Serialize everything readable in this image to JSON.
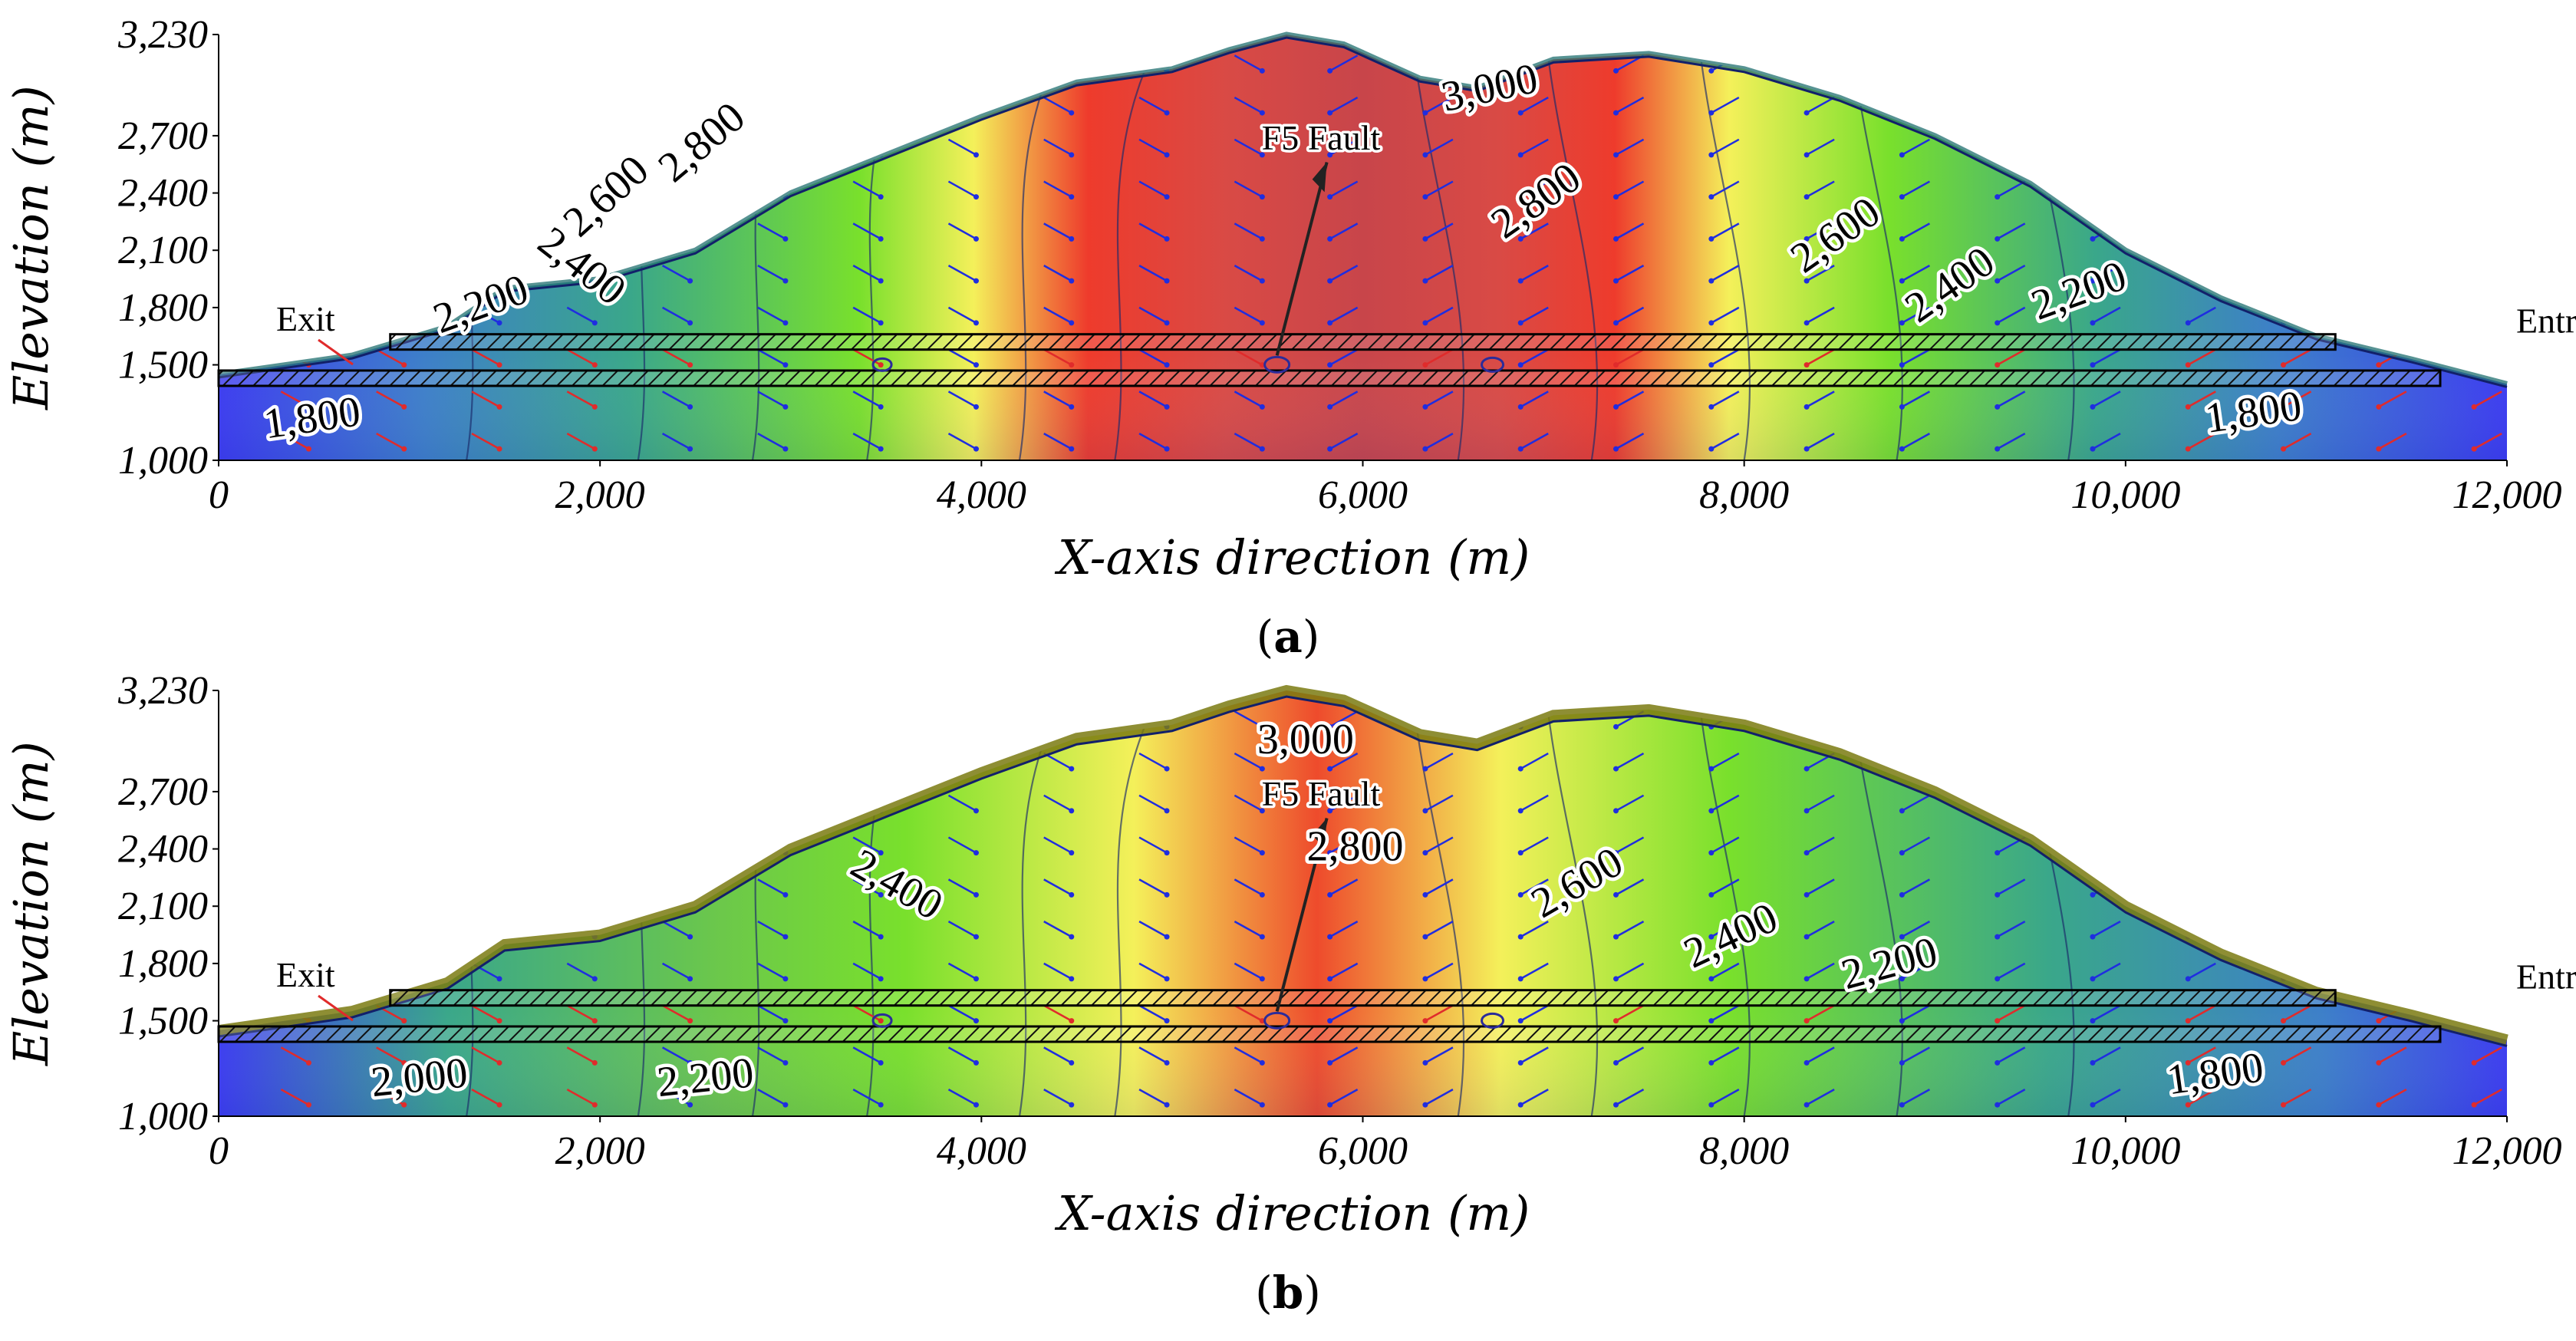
{
  "panels": [
    {
      "label_open": "(",
      "label_letter": "a",
      "label_close": ")",
      "peak_palette": "red",
      "labels": {
        "exit": "Exit",
        "entrance": "Entrance",
        "fault": "F5 Fault"
      },
      "contour_labels": [
        {
          "text": "1,800",
          "x": 500,
          "y": 1150,
          "angle": -8
        },
        {
          "text": "2,200",
          "x": 1400,
          "y": 1750,
          "angle": -20
        },
        {
          "text": "2,400",
          "x": 1860,
          "y": 1960,
          "angle": 38
        },
        {
          "text": "2,600",
          "x": 2080,
          "y": 2330,
          "angle": -42
        },
        {
          "text": "2,800",
          "x": 2580,
          "y": 2610,
          "angle": -40
        },
        {
          "text": "3,000",
          "x": 6680,
          "y": 2880,
          "angle": -12
        },
        {
          "text": "2,800",
          "x": 6950,
          "y": 2300,
          "angle": -35
        },
        {
          "text": "2,600",
          "x": 8520,
          "y": 2120,
          "angle": -35
        },
        {
          "text": "2,400",
          "x": 9120,
          "y": 1860,
          "angle": -35
        },
        {
          "text": "2,200",
          "x": 9780,
          "y": 1820,
          "angle": -20
        },
        {
          "text": "1,800",
          "x": 10680,
          "y": 1180,
          "angle": -8
        }
      ]
    },
    {
      "label_open": "(",
      "label_letter": "b",
      "label_close": ")",
      "peak_palette": "orange",
      "labels": {
        "exit": "Exit",
        "entrance": "Entrance",
        "fault": "F5 Fault"
      },
      "contour_labels": [
        {
          "text": "2,000",
          "x": 1060,
          "y": 1130,
          "angle": -6
        },
        {
          "text": "2,200",
          "x": 2560,
          "y": 1130,
          "angle": -6
        },
        {
          "text": "2,400",
          "x": 3520,
          "y": 2150,
          "angle": 30
        },
        {
          "text": "3,000",
          "x": 5700,
          "y": 2900,
          "angle": 0
        },
        {
          "text": "2,800",
          "x": 5960,
          "y": 2340,
          "angle": 0
        },
        {
          "text": "2,600",
          "x": 7160,
          "y": 2160,
          "angle": -30
        },
        {
          "text": "2,400",
          "x": 7960,
          "y": 1880,
          "angle": -25
        },
        {
          "text": "2,200",
          "x": 8780,
          "y": 1730,
          "angle": -15
        },
        {
          "text": "1,800",
          "x": 10480,
          "y": 1150,
          "angle": -8
        }
      ]
    }
  ],
  "chart_data": [
    {
      "type": "heatmap",
      "panel": "a",
      "xlabel": "X-axis direction (m)",
      "ylabel": "Elevation (m)",
      "xlim": [
        0,
        12000
      ],
      "ylim": [
        1000,
        3230
      ],
      "x_ticks": [
        "0",
        "2,000",
        "4,000",
        "6,000",
        "8,000",
        "10,000",
        "12,000"
      ],
      "y_ticks": [
        "1,000",
        "1,500",
        "1,800",
        "2,100",
        "2,400",
        "2,700",
        "3,230"
      ],
      "contour_values": [
        "1,800",
        "2,200",
        "2,400",
        "2,600",
        "2,800",
        "3,000",
        "2,800",
        "2,600",
        "2,400",
        "2,200",
        "1,800"
      ],
      "annotations": [
        "Exit",
        "Entrance",
        "F5 Fault"
      ],
      "surface_profile": [
        [
          0,
          1450
        ],
        [
          700,
          1550
        ],
        [
          1200,
          1700
        ],
        [
          1500,
          1900
        ],
        [
          2000,
          1950
        ],
        [
          2500,
          2100
        ],
        [
          3000,
          2400
        ],
        [
          3500,
          2600
        ],
        [
          4000,
          2800
        ],
        [
          4500,
          2980
        ],
        [
          5000,
          3050
        ],
        [
          5300,
          3150
        ],
        [
          5600,
          3230
        ],
        [
          5900,
          3180
        ],
        [
          6300,
          3000
        ],
        [
          6600,
          2950
        ],
        [
          7000,
          3100
        ],
        [
          7500,
          3130
        ],
        [
          8000,
          3050
        ],
        [
          8500,
          2900
        ],
        [
          9000,
          2700
        ],
        [
          9500,
          2450
        ],
        [
          10000,
          2100
        ],
        [
          10500,
          1850
        ],
        [
          11000,
          1650
        ],
        [
          11500,
          1530
        ],
        [
          12000,
          1400
        ]
      ],
      "tunnel_upper_elevation": 1620,
      "tunnel_lower_elevation": 1430,
      "fault_x": 5550
    },
    {
      "type": "heatmap",
      "panel": "b",
      "xlabel": "X-axis direction (m)",
      "ylabel": "Elevation (m)",
      "xlim": [
        0,
        12000
      ],
      "ylim": [
        1000,
        3230
      ],
      "x_ticks": [
        "0",
        "2,000",
        "4,000",
        "6,000",
        "8,000",
        "10,000",
        "12,000"
      ],
      "y_ticks": [
        "1,000",
        "1,500",
        "1,800",
        "2,100",
        "2,400",
        "2,700",
        "3,230"
      ],
      "contour_values": [
        "2,000",
        "2,200",
        "2,400",
        "3,000",
        "2,800",
        "2,600",
        "2,400",
        "2,200",
        "1,800"
      ],
      "annotations": [
        "Exit",
        "Entrance",
        "F5 Fault"
      ],
      "surface_profile": [
        [
          0,
          1450
        ],
        [
          700,
          1550
        ],
        [
          1200,
          1700
        ],
        [
          1500,
          1900
        ],
        [
          2000,
          1950
        ],
        [
          2500,
          2100
        ],
        [
          3000,
          2400
        ],
        [
          3500,
          2600
        ],
        [
          4000,
          2800
        ],
        [
          4500,
          2980
        ],
        [
          5000,
          3050
        ],
        [
          5300,
          3150
        ],
        [
          5600,
          3230
        ],
        [
          5900,
          3180
        ],
        [
          6300,
          3000
        ],
        [
          6600,
          2950
        ],
        [
          7000,
          3100
        ],
        [
          7500,
          3130
        ],
        [
          8000,
          3050
        ],
        [
          8500,
          2900
        ],
        [
          9000,
          2700
        ],
        [
          9500,
          2450
        ],
        [
          10000,
          2100
        ],
        [
          10500,
          1850
        ],
        [
          11000,
          1650
        ],
        [
          11500,
          1530
        ],
        [
          12000,
          1400
        ]
      ],
      "tunnel_upper_elevation": 1620,
      "tunnel_lower_elevation": 1430,
      "fault_x": 5550
    }
  ],
  "colors": {
    "low": "#3b3bf0",
    "mid_low": "#3aa78a",
    "mid": "#79e02c",
    "mid_high": "#f4f05a",
    "high": "#ee3b2c",
    "peak_a": "#c8454a",
    "peak_b": "#ee4b2c",
    "crust": "#7a7a10",
    "vector_blue": "#1f2de0",
    "vector_red": "#e02b2b"
  }
}
